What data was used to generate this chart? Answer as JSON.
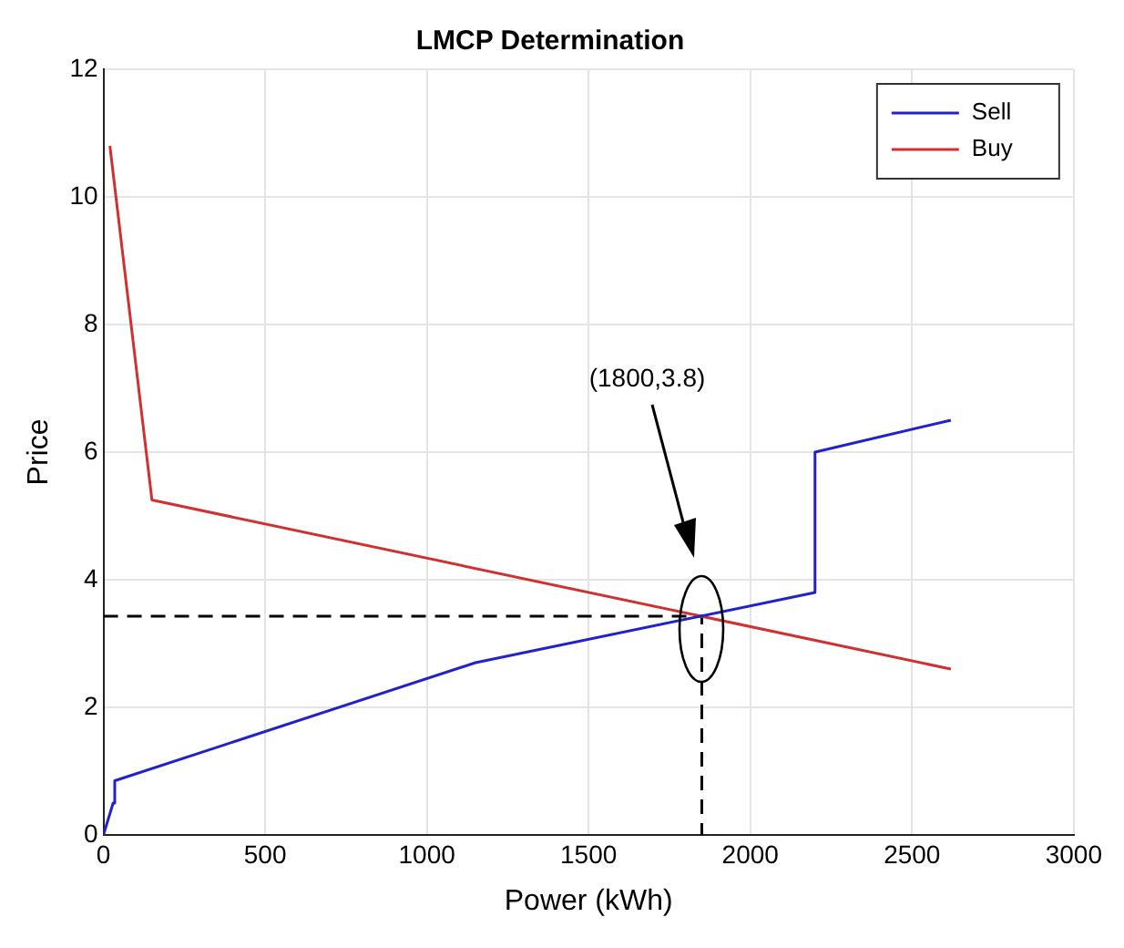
{
  "chart_data": {
    "type": "line",
    "title": "LMCP Determination",
    "xlabel": "Power (kWh)",
    "ylabel": "Price",
    "xlim": [
      0,
      3000
    ],
    "xticks": [
      0,
      500,
      1000,
      1500,
      2000,
      2500,
      3000
    ],
    "ylim": [
      0,
      12
    ],
    "yticks": [
      0,
      2,
      4,
      6,
      8,
      10,
      12
    ],
    "grid": true,
    "legend": "top right",
    "marker": "none",
    "series": [
      {
        "name": "Sell",
        "color": "#2222cc",
        "x": [
          0,
          30,
          35,
          1150,
          2200,
          2200,
          2620
        ],
        "values": [
          0,
          0.5,
          0.85,
          2.7,
          3.8,
          6,
          6.5
        ]
      },
      {
        "name": "Buy",
        "color": "#d03030",
        "x": [
          20,
          150,
          2620
        ],
        "values": [
          10.8,
          5.25,
          2.6
        ]
      },
      {
        "color": "#000000",
        "line_style": "dashed",
        "x": [
          0,
          1850,
          1850
        ],
        "values": [
          3.43,
          3.43,
          0
        ]
      }
    ],
    "annotations": [
      "(1800,3.8)"
    ]
  }
}
